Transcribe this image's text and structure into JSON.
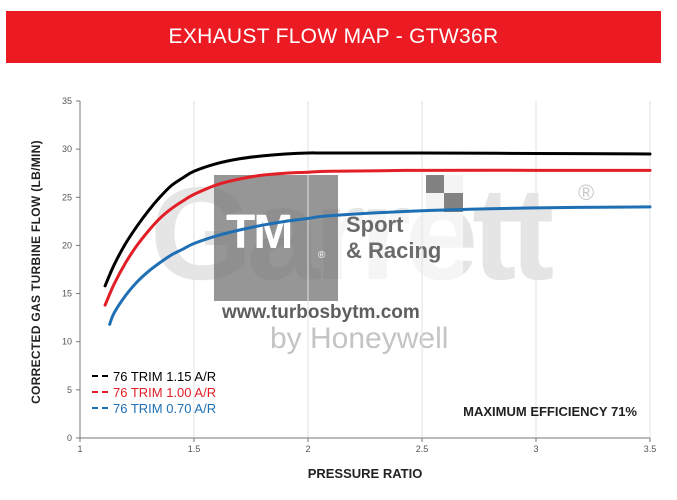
{
  "banner": {
    "title": "EXHAUST FLOW MAP  -  GTW36R",
    "color": "#ec1b23"
  },
  "watermark": {
    "brand": "Garrett",
    "reg": "®",
    "tagline": "by Honeywell",
    "logo_text": "TM",
    "logo_r": "®",
    "sport_line1": "Sport",
    "sport_line2": "& Racing",
    "url": "www.turbosbytm.com"
  },
  "annotation": "MAXIMUM EFFICIENCY 71%",
  "chart_data": {
    "type": "line",
    "title": "EXHAUST FLOW MAP  -  GTW36R",
    "xlabel": "PRESSURE RATIO",
    "ylabel": "CORRECTED GAS TURBINE FLOW (LB/MIN)",
    "xlim": [
      1,
      3.5
    ],
    "ylim": [
      0,
      35
    ],
    "xticks": [
      1,
      1.5,
      2,
      2.5,
      3,
      3.5
    ],
    "yticks": [
      0,
      5,
      10,
      15,
      20,
      25,
      30,
      35
    ],
    "xtick_labels": [
      "1",
      "1.5",
      "2",
      "2.5",
      "3",
      "3.5"
    ],
    "ytick_labels": [
      "0",
      "5",
      "10",
      "15",
      "20",
      "25",
      "30",
      "35"
    ],
    "grid": "vertical",
    "legend_position": "bottom-left",
    "series": [
      {
        "name": "76 TRIM 1.15 A/R",
        "color": "#000000",
        "x": [
          1.11,
          1.15,
          1.2,
          1.25,
          1.3,
          1.35,
          1.4,
          1.45,
          1.5,
          1.6,
          1.7,
          1.8,
          1.9,
          2.0,
          2.1,
          2.5,
          3.0,
          3.5
        ],
        "y": [
          15.8,
          18.0,
          20.2,
          22.0,
          23.6,
          25.0,
          26.2,
          27.0,
          27.7,
          28.5,
          29.0,
          29.3,
          29.5,
          29.6,
          29.6,
          29.6,
          29.55,
          29.5
        ]
      },
      {
        "name": "76 TRIM 1.00 A/R",
        "color": "#e21e26",
        "x": [
          1.11,
          1.15,
          1.2,
          1.25,
          1.3,
          1.35,
          1.4,
          1.45,
          1.5,
          1.6,
          1.7,
          1.8,
          1.9,
          2.0,
          2.1,
          2.5,
          3.0,
          3.5
        ],
        "y": [
          13.8,
          16.0,
          18.2,
          20.0,
          21.5,
          22.8,
          23.8,
          24.6,
          25.3,
          26.3,
          26.9,
          27.3,
          27.5,
          27.6,
          27.7,
          27.8,
          27.8,
          27.8
        ]
      },
      {
        "name": "76 TRIM 0.70 A/R",
        "color": "#1f6fb4",
        "x": [
          1.13,
          1.15,
          1.2,
          1.25,
          1.3,
          1.35,
          1.4,
          1.45,
          1.5,
          1.6,
          1.7,
          1.8,
          1.9,
          2.0,
          2.1,
          2.5,
          3.0,
          3.5
        ],
        "y": [
          11.8,
          13.0,
          14.8,
          16.2,
          17.3,
          18.2,
          19.0,
          19.6,
          20.2,
          21.0,
          21.6,
          22.1,
          22.5,
          22.8,
          23.1,
          23.6,
          23.9,
          24.0
        ]
      }
    ]
  }
}
